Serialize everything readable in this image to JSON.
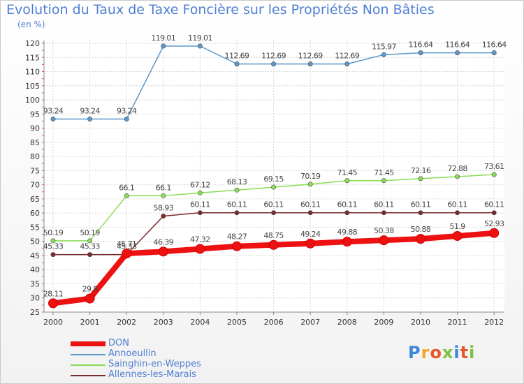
{
  "chart_data": {
    "type": "line",
    "title": "Evolution du Taux de Taxe Foncière sur les Propriétés Non Bâties",
    "ylabel": "(en %)",
    "xlabel": "",
    "x": [
      "2000",
      "2001",
      "2002",
      "2003",
      "2004",
      "2005",
      "2006",
      "2007",
      "2008",
      "2009",
      "2010",
      "2011",
      "2012"
    ],
    "ylim": [
      25,
      120
    ],
    "yticks": [
      25,
      30,
      35,
      40,
      45,
      50,
      55,
      60,
      65,
      70,
      75,
      80,
      85,
      90,
      95,
      100,
      105,
      110,
      115,
      120
    ],
    "series": [
      {
        "name": "DON",
        "color": "#ee1111",
        "emphasis": true,
        "values": [
          28.11,
          29.8,
          45.71,
          46.39,
          47.32,
          48.27,
          48.75,
          49.24,
          49.88,
          50.38,
          50.88,
          51.9,
          52.93
        ],
        "labels": [
          "28.11",
          "29.8",
          "45.71",
          "46.39",
          "47.32",
          "48.27",
          "48.75",
          "49.24",
          "49.88",
          "50.38",
          "50.88",
          "51.9",
          "52.93"
        ]
      },
      {
        "name": "Annoeullin",
        "color": "#5b97c8",
        "values": [
          93.24,
          93.24,
          93.24,
          119.01,
          119.01,
          112.69,
          112.69,
          112.69,
          112.69,
          115.97,
          116.64,
          116.64,
          116.64
        ],
        "labels": [
          "93.24",
          "93.24",
          "93.24",
          "119.01",
          "119.01",
          "112.69",
          "112.69",
          "112.69",
          "112.69",
          "115.97",
          "116.64",
          "116.64",
          "116.64"
        ]
      },
      {
        "name": "Sainghin-en-Weppes",
        "color": "#88dd55",
        "values": [
          50.19,
          50.19,
          66.1,
          66.1,
          67.12,
          68.13,
          69.15,
          70.19,
          71.45,
          71.45,
          72.16,
          72.88,
          73.61
        ],
        "labels": [
          "50.19",
          "50.19",
          "66.1",
          "66.1",
          "67.12",
          "68.13",
          "69.15",
          "70.19",
          "71.45",
          "71.45",
          "72.16",
          "72.88",
          "73.61"
        ]
      },
      {
        "name": "Allennes-les-Marais",
        "color": "#7a2a2a",
        "values": [
          45.33,
          45.33,
          45.33,
          58.93,
          60.11,
          60.11,
          60.11,
          60.11,
          60.11,
          60.11,
          60.11,
          60.11,
          60.11
        ],
        "labels": [
          "45.33",
          "45.33",
          "45.33",
          "58.93",
          "60.11",
          "60.11",
          "60.11",
          "60.11",
          "60.11",
          "60.11",
          "60.11",
          "60.11",
          "60.11"
        ]
      }
    ],
    "legend_position": "bottom-left"
  },
  "logo": {
    "letters": [
      "P",
      "r",
      "o",
      "x",
      "i",
      "t",
      "i"
    ],
    "colors": [
      "#3a86d8",
      "#f5a623",
      "#e8552b",
      "#7ac143",
      "#3a86d8",
      "#e8552b",
      "#7ac143"
    ]
  }
}
